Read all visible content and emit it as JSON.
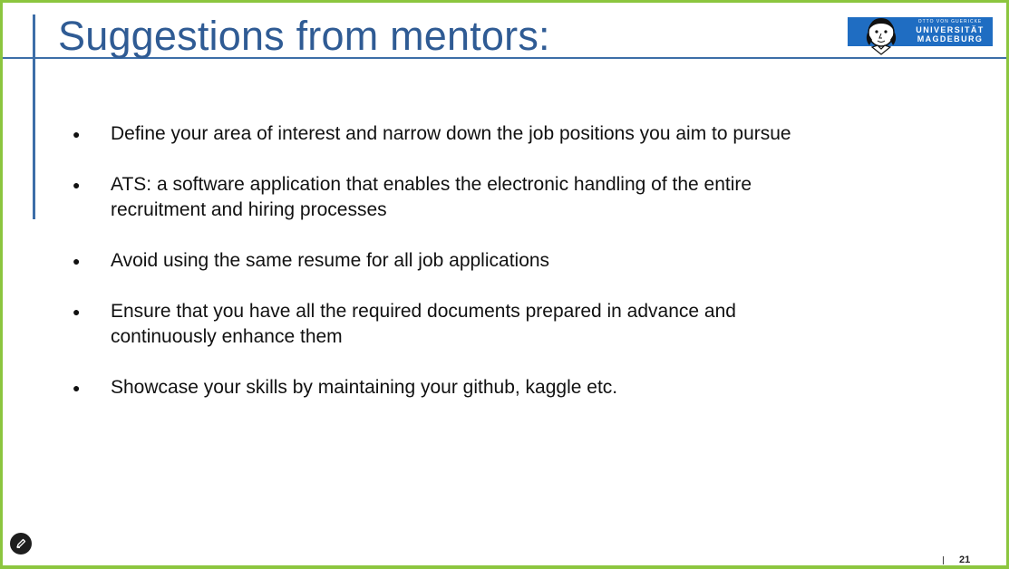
{
  "slide": {
    "title": "Suggestions from mentors:",
    "page_number": "21",
    "bullets": [
      "Define your area of interest and narrow down the job positions you aim to pursue",
      "ATS: a software application that enables the electronic handling of the entire recruitment and hiring processes",
      "Avoid using the same resume for all job applications",
      "Ensure that you have all the required documents prepared in advance and continuously enhance them",
      "Showcase your skills by maintaining your github, kaggle etc."
    ]
  },
  "logo": {
    "line1": "OTTO VON GUERICKE",
    "line2": "UNIVERSITÄT",
    "line3": "MAGDEBURG"
  },
  "icons": {
    "pen": "pen-icon",
    "portrait": "portrait-icon"
  },
  "colors": {
    "frame": "#8cc63f",
    "accent_blue": "#3d6ea8",
    "title": "#2f5b94",
    "logo_bg": "#1f6dc2"
  }
}
